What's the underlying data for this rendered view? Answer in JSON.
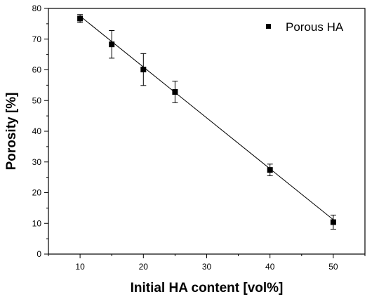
{
  "chart_data": {
    "type": "scatter",
    "xlabel": "Initial HA content [vol%]",
    "ylabel": "Porosity [%]",
    "xlim": [
      5,
      55
    ],
    "ylim": [
      0,
      80
    ],
    "x_ticks": [
      10,
      20,
      30,
      40,
      50
    ],
    "y_ticks": [
      0,
      10,
      20,
      30,
      40,
      50,
      60,
      70,
      80
    ],
    "x_tick_labels": [
      "10",
      "20",
      "30",
      "40",
      "50"
    ],
    "y_tick_labels": [
      "0",
      "10",
      "20",
      "30",
      "40",
      "50",
      "60",
      "70",
      "80"
    ],
    "legend_position": "top-right",
    "grid": false,
    "series": [
      {
        "name": "Porous HA",
        "marker": "square",
        "color": "#000000",
        "x": [
          10,
          15,
          20,
          25,
          40,
          50
        ],
        "y": [
          76.7,
          68.3,
          60.1,
          52.8,
          27.4,
          10.4
        ],
        "error": [
          1.3,
          4.5,
          5.2,
          3.5,
          1.9,
          2.3
        ]
      }
    ],
    "fit_line": {
      "x": [
        10,
        50
      ],
      "y": [
        77.5,
        11.2
      ],
      "color": "#000000"
    }
  }
}
